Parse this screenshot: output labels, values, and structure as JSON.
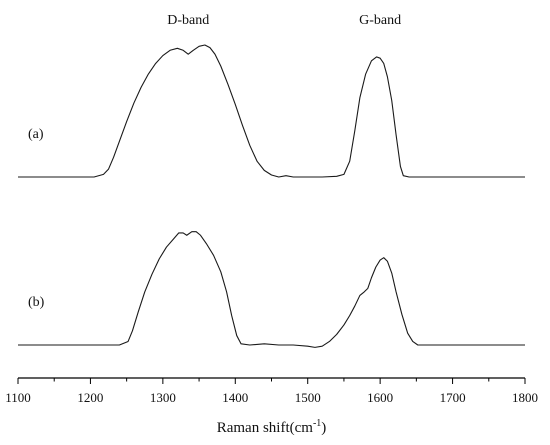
{
  "chart_data": {
    "type": "line",
    "xlabel": "Raman shift(cm",
    "xlabel_sup": "-1",
    "xlabel_close": ")",
    "ylabel": "",
    "xlim": [
      1100,
      1800
    ],
    "x_ticks": [
      1100,
      1200,
      1300,
      1400,
      1500,
      1600,
      1700,
      1800
    ],
    "grid": false,
    "annotations": [
      {
        "text": "D-band",
        "x": 1335
      },
      {
        "text": "G-band",
        "x": 1600
      }
    ],
    "series": [
      {
        "label": "(a)",
        "points": [
          [
            1100,
            0
          ],
          [
            1150,
            0
          ],
          [
            1205,
            0
          ],
          [
            1218,
            2
          ],
          [
            1225,
            6
          ],
          [
            1232,
            15
          ],
          [
            1240,
            27
          ],
          [
            1250,
            42
          ],
          [
            1260,
            56
          ],
          [
            1270,
            68
          ],
          [
            1280,
            78
          ],
          [
            1290,
            86
          ],
          [
            1300,
            92
          ],
          [
            1310,
            96
          ],
          [
            1320,
            97.5
          ],
          [
            1328,
            96
          ],
          [
            1335,
            93
          ],
          [
            1342,
            96
          ],
          [
            1350,
            99
          ],
          [
            1358,
            100
          ],
          [
            1365,
            98
          ],
          [
            1372,
            93
          ],
          [
            1380,
            84
          ],
          [
            1390,
            70
          ],
          [
            1400,
            55
          ],
          [
            1410,
            39
          ],
          [
            1420,
            24
          ],
          [
            1430,
            12
          ],
          [
            1440,
            5
          ],
          [
            1450,
            1.5
          ],
          [
            1460,
            0
          ],
          [
            1470,
            1
          ],
          [
            1480,
            0
          ],
          [
            1500,
            0
          ],
          [
            1520,
            0
          ],
          [
            1540,
            0.5
          ],
          [
            1550,
            2
          ],
          [
            1558,
            12
          ],
          [
            1565,
            35
          ],
          [
            1572,
            60
          ],
          [
            1580,
            78
          ],
          [
            1588,
            88
          ],
          [
            1595,
            91
          ],
          [
            1600,
            90
          ],
          [
            1605,
            86
          ],
          [
            1610,
            76
          ],
          [
            1616,
            58
          ],
          [
            1622,
            32
          ],
          [
            1628,
            8
          ],
          [
            1632,
            1
          ],
          [
            1640,
            0
          ],
          [
            1700,
            0
          ],
          [
            1800,
            0
          ]
        ]
      },
      {
        "label": "(b)",
        "points": [
          [
            1100,
            0
          ],
          [
            1150,
            0
          ],
          [
            1200,
            0
          ],
          [
            1240,
            0
          ],
          [
            1252,
            3
          ],
          [
            1258,
            12
          ],
          [
            1266,
            28
          ],
          [
            1275,
            45
          ],
          [
            1285,
            60
          ],
          [
            1295,
            73
          ],
          [
            1305,
            83
          ],
          [
            1315,
            90
          ],
          [
            1322,
            95
          ],
          [
            1328,
            95
          ],
          [
            1333,
            93
          ],
          [
            1340,
            96
          ],
          [
            1346,
            96
          ],
          [
            1352,
            93
          ],
          [
            1360,
            86
          ],
          [
            1370,
            76
          ],
          [
            1380,
            62
          ],
          [
            1388,
            45
          ],
          [
            1395,
            25
          ],
          [
            1402,
            8
          ],
          [
            1408,
            1
          ],
          [
            1420,
            0
          ],
          [
            1440,
            1
          ],
          [
            1460,
            0
          ],
          [
            1480,
            0
          ],
          [
            1500,
            -1
          ],
          [
            1510,
            -2
          ],
          [
            1520,
            -1
          ],
          [
            1530,
            3
          ],
          [
            1540,
            9
          ],
          [
            1550,
            17
          ],
          [
            1558,
            25
          ],
          [
            1565,
            33
          ],
          [
            1572,
            42
          ],
          [
            1578,
            45
          ],
          [
            1583,
            48
          ],
          [
            1588,
            57
          ],
          [
            1594,
            66
          ],
          [
            1600,
            72
          ],
          [
            1605,
            74
          ],
          [
            1610,
            71
          ],
          [
            1616,
            61
          ],
          [
            1622,
            45
          ],
          [
            1630,
            26
          ],
          [
            1638,
            10
          ],
          [
            1645,
            3
          ],
          [
            1652,
            0
          ],
          [
            1700,
            0
          ],
          [
            1800,
            0
          ]
        ]
      }
    ]
  }
}
